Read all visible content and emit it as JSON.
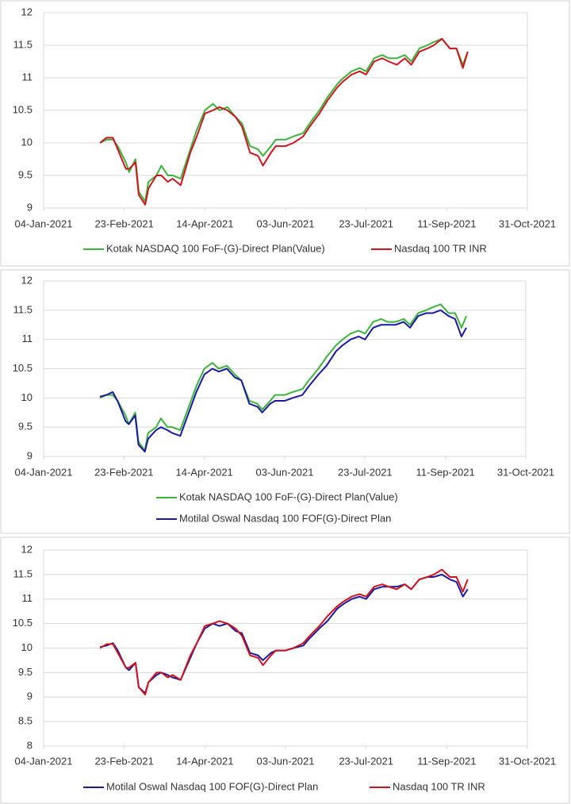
{
  "chart_data": [
    {
      "type": "line",
      "x": [
        "2021-02-08",
        "2021-02-12",
        "2021-02-16",
        "2021-02-19",
        "2021-02-24",
        "2021-02-26",
        "2021-03-02",
        "2021-03-04",
        "2021-03-08",
        "2021-03-10",
        "2021-03-15",
        "2021-03-18",
        "2021-03-22",
        "2021-03-25",
        "2021-03-30",
        "2021-04-05",
        "2021-04-09",
        "2021-04-14",
        "2021-04-19",
        "2021-04-23",
        "2021-04-28",
        "2021-05-03",
        "2021-05-07",
        "2021-05-12",
        "2021-05-17",
        "2021-05-20",
        "2021-05-25",
        "2021-05-28",
        "2021-06-03",
        "2021-06-08",
        "2021-06-14",
        "2021-06-18",
        "2021-06-24",
        "2021-06-29",
        "2021-07-05",
        "2021-07-09",
        "2021-07-14",
        "2021-07-19",
        "2021-07-23",
        "2021-07-28",
        "2021-08-02",
        "2021-08-06",
        "2021-08-11",
        "2021-08-16",
        "2021-08-20",
        "2021-08-25",
        "2021-08-30",
        "2021-09-03",
        "2021-09-08",
        "2021-09-13",
        "2021-09-17",
        "2021-09-21",
        "2021-09-24"
      ],
      "series": [
        {
          "name": "Kotak NASDAQ 100 FoF-(G)-Direct Plan(Value)",
          "color": "#3cb43c",
          "values": [
            10.0,
            10.05,
            10.05,
            9.95,
            9.7,
            9.55,
            9.75,
            9.25,
            9.1,
            9.4,
            9.5,
            9.65,
            9.5,
            9.5,
            9.45,
            9.9,
            10.2,
            10.5,
            10.6,
            10.5,
            10.55,
            10.4,
            10.3,
            9.95,
            9.9,
            9.8,
            9.95,
            10.05,
            10.05,
            10.1,
            10.15,
            10.3,
            10.5,
            10.7,
            10.9,
            11.0,
            11.1,
            11.15,
            11.1,
            11.3,
            11.35,
            11.3,
            11.3,
            11.35,
            11.25,
            11.45,
            11.5,
            11.55,
            11.6,
            11.45,
            11.45,
            11.2,
            11.4
          ]
        },
        {
          "name": "Nasdaq 100 TR INR",
          "color": "#d0141e",
          "values": [
            10.0,
            10.08,
            10.08,
            9.9,
            9.6,
            9.6,
            9.7,
            9.2,
            9.05,
            9.3,
            9.5,
            9.5,
            9.4,
            9.45,
            9.35,
            9.85,
            10.1,
            10.45,
            10.5,
            10.55,
            10.5,
            10.4,
            10.25,
            9.85,
            9.8,
            9.65,
            9.85,
            9.95,
            9.95,
            10.0,
            10.1,
            10.25,
            10.45,
            10.65,
            10.85,
            10.95,
            11.05,
            11.1,
            11.05,
            11.25,
            11.3,
            11.25,
            11.2,
            11.3,
            11.2,
            11.4,
            11.45,
            11.5,
            11.6,
            11.45,
            11.45,
            11.15,
            11.4
          ]
        }
      ],
      "xlim": [
        "2021-01-04",
        "2021-10-31"
      ],
      "xticks": [
        {
          "value": "2021-01-04",
          "label": "04-Jan-2021"
        },
        {
          "value": "2021-02-23",
          "label": "23-Feb-2021"
        },
        {
          "value": "2021-04-14",
          "label": "14-Apr-2021"
        },
        {
          "value": "2021-06-03",
          "label": "03-Jun-2021"
        },
        {
          "value": "2021-07-23",
          "label": "23-Jul-2021"
        },
        {
          "value": "2021-09-11",
          "label": "11-Sep-2021"
        },
        {
          "value": "2021-10-31",
          "label": "31-Oct-2021"
        }
      ],
      "ylim": [
        9,
        12
      ],
      "yticks": [
        9,
        9.5,
        10,
        10.5,
        11,
        11.5,
        12
      ],
      "grid": true,
      "legend": "bottom"
    },
    {
      "type": "line",
      "x": [
        "2021-02-08",
        "2021-02-12",
        "2021-02-16",
        "2021-02-19",
        "2021-02-24",
        "2021-02-26",
        "2021-03-02",
        "2021-03-04",
        "2021-03-08",
        "2021-03-10",
        "2021-03-15",
        "2021-03-18",
        "2021-03-22",
        "2021-03-25",
        "2021-03-30",
        "2021-04-05",
        "2021-04-09",
        "2021-04-14",
        "2021-04-19",
        "2021-04-23",
        "2021-04-28",
        "2021-05-03",
        "2021-05-07",
        "2021-05-12",
        "2021-05-17",
        "2021-05-20",
        "2021-05-25",
        "2021-05-28",
        "2021-06-03",
        "2021-06-08",
        "2021-06-14",
        "2021-06-18",
        "2021-06-24",
        "2021-06-29",
        "2021-07-05",
        "2021-07-09",
        "2021-07-14",
        "2021-07-19",
        "2021-07-23",
        "2021-07-28",
        "2021-08-02",
        "2021-08-06",
        "2021-08-11",
        "2021-08-16",
        "2021-08-20",
        "2021-08-25",
        "2021-08-30",
        "2021-09-03",
        "2021-09-08",
        "2021-09-13",
        "2021-09-17",
        "2021-09-21",
        "2021-09-24"
      ],
      "series": [
        {
          "name": "Kotak NASDAQ 100 FoF-(G)-Direct Plan(Value)",
          "color": "#3cb43c",
          "values": [
            10.0,
            10.05,
            10.05,
            9.95,
            9.7,
            9.55,
            9.75,
            9.25,
            9.1,
            9.4,
            9.5,
            9.65,
            9.5,
            9.5,
            9.45,
            9.9,
            10.2,
            10.5,
            10.6,
            10.5,
            10.55,
            10.4,
            10.3,
            9.95,
            9.9,
            9.8,
            9.95,
            10.05,
            10.05,
            10.1,
            10.15,
            10.3,
            10.5,
            10.7,
            10.9,
            11.0,
            11.1,
            11.15,
            11.1,
            11.3,
            11.35,
            11.3,
            11.3,
            11.35,
            11.25,
            11.45,
            11.5,
            11.55,
            11.6,
            11.45,
            11.45,
            11.2,
            11.4
          ]
        },
        {
          "name": "Motilal Oswal Nasdaq 100 FOF(G)-Direct Plan",
          "color": "#1a1aa0",
          "values": [
            10.02,
            10.05,
            10.1,
            9.95,
            9.6,
            9.55,
            9.7,
            9.2,
            9.08,
            9.3,
            9.45,
            9.5,
            9.45,
            9.4,
            9.35,
            9.8,
            10.1,
            10.4,
            10.5,
            10.45,
            10.5,
            10.35,
            10.3,
            9.9,
            9.85,
            9.75,
            9.9,
            9.95,
            9.95,
            10.0,
            10.05,
            10.2,
            10.4,
            10.55,
            10.8,
            10.9,
            11.0,
            11.05,
            11.0,
            11.2,
            11.25,
            11.25,
            11.25,
            11.3,
            11.2,
            11.4,
            11.45,
            11.45,
            11.5,
            11.4,
            11.35,
            11.05,
            11.2
          ]
        }
      ],
      "xlim": [
        "2021-01-04",
        "2021-10-31"
      ],
      "xticks": [
        {
          "value": "2021-01-04",
          "label": "04-Jan-2021"
        },
        {
          "value": "2021-02-23",
          "label": "23-Feb-2021"
        },
        {
          "value": "2021-04-14",
          "label": "14-Apr-2021"
        },
        {
          "value": "2021-06-03",
          "label": "03-Jun-2021"
        },
        {
          "value": "2021-07-23",
          "label": "23-Jul-2021"
        },
        {
          "value": "2021-09-11",
          "label": "11-Sep-2021"
        },
        {
          "value": "2021-10-31",
          "label": "31-Oct-2021"
        }
      ],
      "ylim": [
        9,
        12
      ],
      "yticks": [
        9,
        9.5,
        10,
        10.5,
        11,
        11.5,
        12
      ],
      "grid": true,
      "legend": "bottom"
    },
    {
      "type": "line",
      "x": [
        "2021-02-08",
        "2021-02-12",
        "2021-02-16",
        "2021-02-19",
        "2021-02-24",
        "2021-02-26",
        "2021-03-02",
        "2021-03-04",
        "2021-03-08",
        "2021-03-10",
        "2021-03-15",
        "2021-03-18",
        "2021-03-22",
        "2021-03-25",
        "2021-03-30",
        "2021-04-05",
        "2021-04-09",
        "2021-04-14",
        "2021-04-19",
        "2021-04-23",
        "2021-04-28",
        "2021-05-03",
        "2021-05-07",
        "2021-05-12",
        "2021-05-17",
        "2021-05-20",
        "2021-05-25",
        "2021-05-28",
        "2021-06-03",
        "2021-06-08",
        "2021-06-14",
        "2021-06-18",
        "2021-06-24",
        "2021-06-29",
        "2021-07-05",
        "2021-07-09",
        "2021-07-14",
        "2021-07-19",
        "2021-07-23",
        "2021-07-28",
        "2021-08-02",
        "2021-08-06",
        "2021-08-11",
        "2021-08-16",
        "2021-08-20",
        "2021-08-25",
        "2021-08-30",
        "2021-09-03",
        "2021-09-08",
        "2021-09-13",
        "2021-09-17",
        "2021-09-21",
        "2021-09-24"
      ],
      "series": [
        {
          "name": "Motilal Oswal Nasdaq 100 FOF(G)-Direct Plan",
          "color": "#1a1aa0",
          "values": [
            10.02,
            10.05,
            10.1,
            9.95,
            9.6,
            9.55,
            9.7,
            9.2,
            9.08,
            9.3,
            9.45,
            9.5,
            9.45,
            9.4,
            9.35,
            9.8,
            10.1,
            10.4,
            10.5,
            10.45,
            10.5,
            10.35,
            10.3,
            9.9,
            9.85,
            9.75,
            9.9,
            9.95,
            9.95,
            10.0,
            10.05,
            10.2,
            10.4,
            10.55,
            10.8,
            10.9,
            11.0,
            11.05,
            11.0,
            11.2,
            11.25,
            11.25,
            11.25,
            11.3,
            11.2,
            11.4,
            11.45,
            11.45,
            11.5,
            11.4,
            11.35,
            11.05,
            11.2
          ]
        },
        {
          "name": "Nasdaq 100 TR INR",
          "color": "#d0141e",
          "values": [
            10.0,
            10.08,
            10.08,
            9.9,
            9.6,
            9.6,
            9.7,
            9.2,
            9.05,
            9.3,
            9.5,
            9.5,
            9.4,
            9.45,
            9.35,
            9.85,
            10.1,
            10.45,
            10.5,
            10.55,
            10.5,
            10.4,
            10.25,
            9.85,
            9.8,
            9.65,
            9.85,
            9.95,
            9.95,
            10.0,
            10.1,
            10.25,
            10.45,
            10.65,
            10.85,
            10.95,
            11.05,
            11.1,
            11.05,
            11.25,
            11.3,
            11.25,
            11.2,
            11.3,
            11.2,
            11.4,
            11.45,
            11.5,
            11.6,
            11.45,
            11.45,
            11.15,
            11.4
          ]
        }
      ],
      "xlim": [
        "2021-01-04",
        "2021-10-31"
      ],
      "xticks": [
        {
          "value": "2021-01-04",
          "label": "04-Jan-2021"
        },
        {
          "value": "2021-02-23",
          "label": "23-Feb-2021"
        },
        {
          "value": "2021-04-14",
          "label": "14-Apr-2021"
        },
        {
          "value": "2021-06-03",
          "label": "03-Jun-2021"
        },
        {
          "value": "2021-07-23",
          "label": "23-Jul-2021"
        },
        {
          "value": "2021-09-11",
          "label": "11-Sep-2021"
        },
        {
          "value": "2021-10-31",
          "label": "31-Oct-2021"
        }
      ],
      "ylim": [
        8,
        12
      ],
      "yticks": [
        8,
        8.5,
        9,
        9.5,
        10,
        10.5,
        11,
        11.5,
        12
      ],
      "grid": true,
      "legend": "bottom"
    }
  ]
}
